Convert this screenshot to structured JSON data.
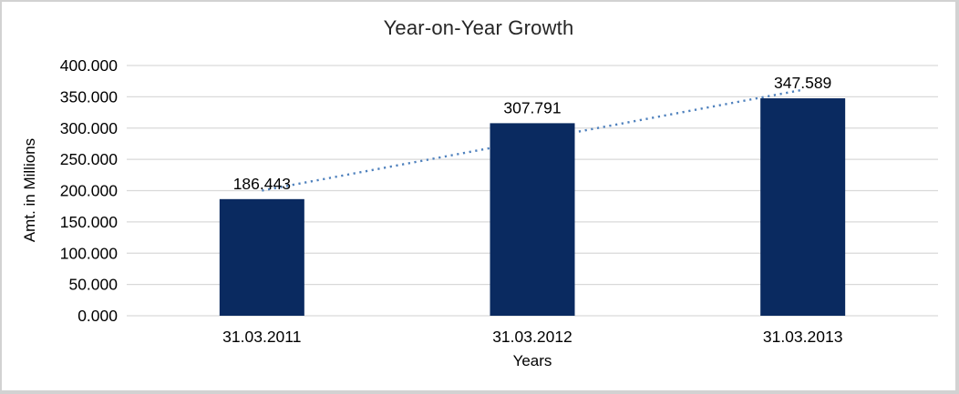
{
  "chart_data": {
    "type": "bar",
    "title": "Year-on-Year Growth",
    "xlabel": "Years",
    "ylabel": "Amt. in Millions",
    "categories": [
      "31.03.2011",
      "31.03.2012",
      "31.03.2013"
    ],
    "values": [
      186443,
      307791,
      347589
    ],
    "value_labels": [
      "186.443",
      "307.791",
      "347.589"
    ],
    "ylim": [
      0,
      400000
    ],
    "y_tick_step": 50000,
    "y_tick_labels": [
      "0.000",
      "50.000",
      "100.000",
      "150.000",
      "200.000",
      "250.000",
      "300.000",
      "350.000",
      "400.000"
    ],
    "grid": true,
    "legend": false,
    "bar_color": "#0a2a60",
    "gridline_color": "#d9d9d9",
    "text_color": "#000000",
    "trendline": {
      "type": "linear",
      "style": "dotted",
      "color": "#4f81bd"
    }
  }
}
